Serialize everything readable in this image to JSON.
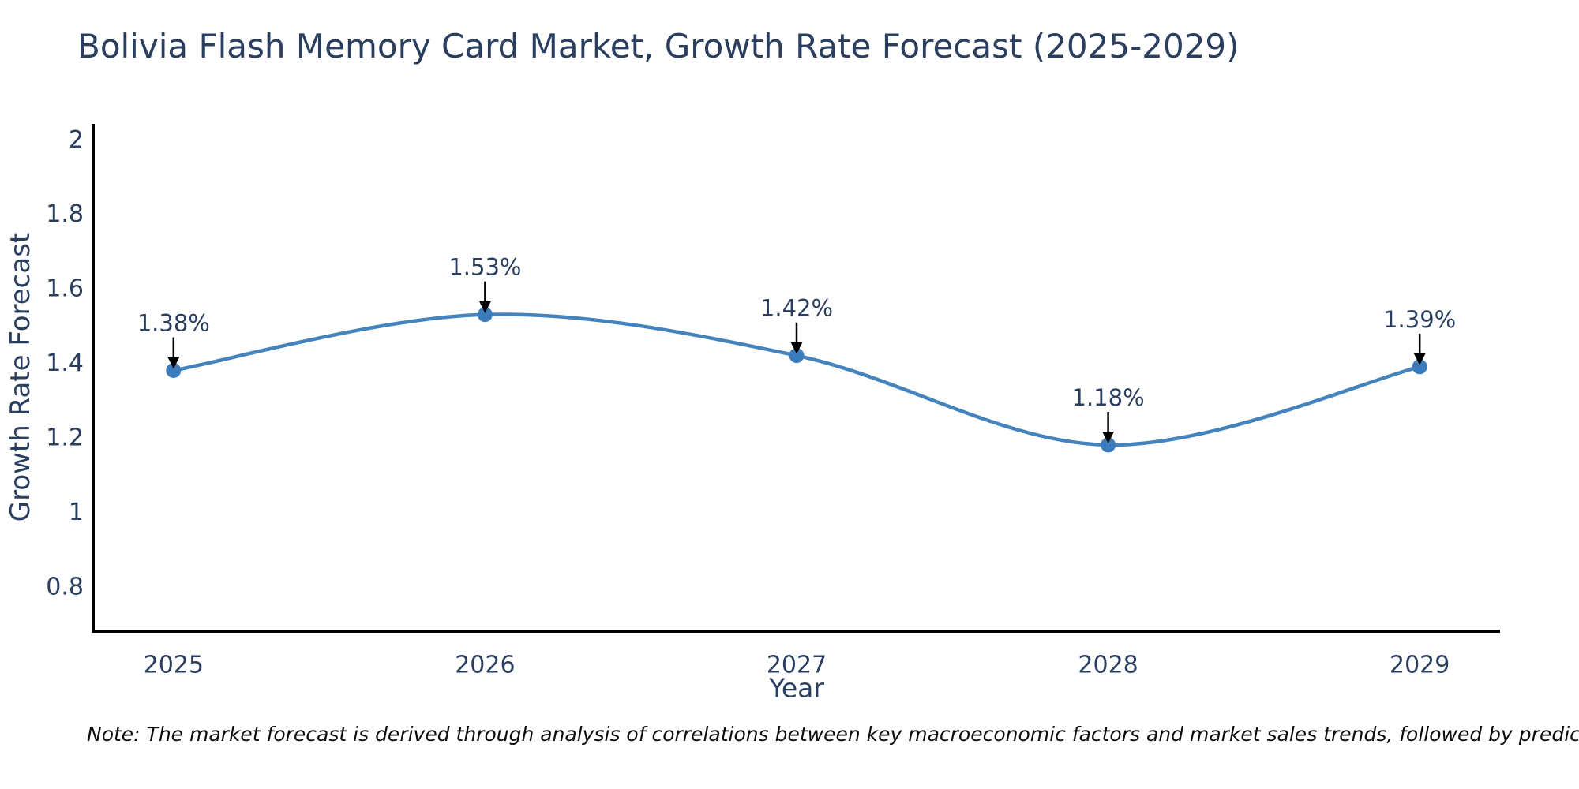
{
  "note": "Note: The market forecast is derived through analysis of correlations between key macroeconomic factors and market sales trends, followed by predictive modeling to project future sales",
  "chart_data": {
    "type": "line",
    "line_shape": "spline",
    "title": "Bolivia Flash Memory Card Market, Growth Rate Forecast (2025-2029)",
    "xlabel": "Year",
    "ylabel": "Growth Rate Forecast",
    "x": [
      2025,
      2026,
      2027,
      2028,
      2029
    ],
    "y": [
      1.38,
      1.53,
      1.42,
      1.18,
      1.39
    ],
    "point_labels": [
      "1.38%",
      "1.53%",
      "1.42%",
      "1.18%",
      "1.39%"
    ],
    "xtick_labels": [
      "2025",
      "2026",
      "2027",
      "2028",
      "2029"
    ],
    "ytick_values": [
      0.8,
      1,
      1.2,
      1.4,
      1.6,
      1.8,
      2
    ],
    "ytick_labels": [
      "0.8",
      "1",
      "1.2",
      "1.4",
      "1.6",
      "1.8",
      "2"
    ],
    "xlim": [
      2024.742,
      2029.258
    ],
    "ylim": [
      0.68,
      2.042
    ],
    "grid": false,
    "legend": false,
    "annotations_have_arrows": true,
    "colors": {
      "line": "#4583bc",
      "marker": "#3b7cbd",
      "arrow": "#000000",
      "axis": "#000000",
      "text": "#2a3f5f"
    }
  }
}
